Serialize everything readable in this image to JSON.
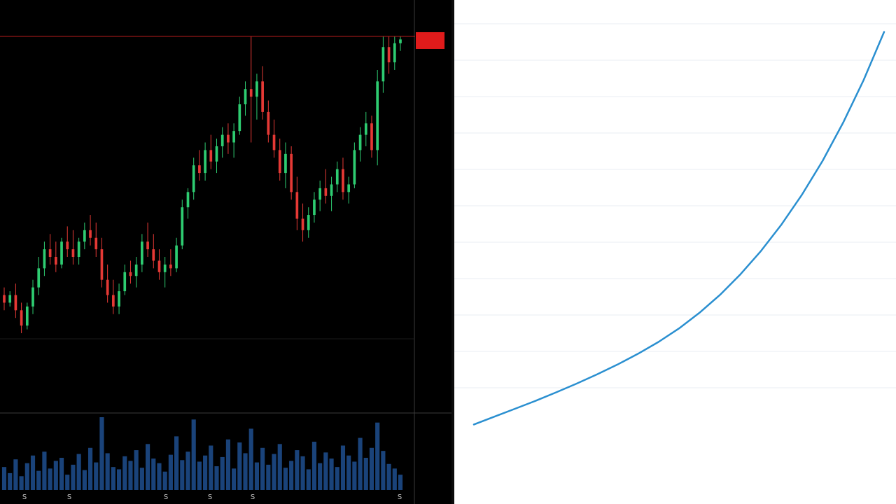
{
  "window": {
    "title": ""
  },
  "colors": {
    "candle_up": "#2ecc71",
    "candle_down": "#e53935",
    "volume": "#1e4f8f",
    "price_line": "#b71c1c",
    "price_label_bg": "#e01b1b",
    "axis_text": "#c8c8c8",
    "grid": "#1a1a1a",
    "curve": "#2a8fd0",
    "curve_grid": "#e9eef3"
  },
  "chart_data": [
    {
      "type": "candlestick",
      "title": "",
      "xlabel": "",
      "ylabel": "",
      "ylim": [
        0,
        100
      ],
      "grid": false,
      "current_price": 97.8,
      "current_price_label": [
        "",
        ""
      ],
      "y_ticks": [
        "",
        "",
        "",
        "",
        "",
        "",
        "",
        "",
        "",
        "",
        "",
        "",
        "",
        "",
        ""
      ],
      "x_ticks": [
        "S",
        "S",
        "S",
        "S",
        "S",
        "S"
      ],
      "volume_ticks": [
        "",
        "",
        ""
      ],
      "ohlc": [
        [
          30,
          32,
          26,
          28
        ],
        [
          28,
          31,
          27,
          30
        ],
        [
          30,
          33,
          24,
          26
        ],
        [
          26,
          28,
          20,
          22
        ],
        [
          22,
          28,
          21,
          27
        ],
        [
          27,
          34,
          25,
          32
        ],
        [
          32,
          40,
          30,
          37
        ],
        [
          37,
          44,
          35,
          42
        ],
        [
          42,
          46,
          38,
          40
        ],
        [
          40,
          44,
          36,
          38
        ],
        [
          38,
          45,
          37,
          44
        ],
        [
          44,
          48,
          40,
          42
        ],
        [
          42,
          47,
          38,
          40
        ],
        [
          40,
          45,
          38,
          44
        ],
        [
          44,
          49,
          42,
          47
        ],
        [
          47,
          51,
          43,
          45
        ],
        [
          45,
          49,
          40,
          42
        ],
        [
          42,
          45,
          32,
          34
        ],
        [
          34,
          38,
          28,
          30
        ],
        [
          30,
          34,
          25,
          27
        ],
        [
          27,
          33,
          25,
          31
        ],
        [
          31,
          38,
          30,
          36
        ],
        [
          36,
          39,
          33,
          35
        ],
        [
          35,
          40,
          32,
          38
        ],
        [
          38,
          46,
          36,
          44
        ],
        [
          44,
          49,
          40,
          42
        ],
        [
          42,
          46,
          37,
          39
        ],
        [
          39,
          42,
          34,
          36
        ],
        [
          36,
          40,
          32,
          38
        ],
        [
          38,
          42,
          35,
          37
        ],
        [
          37,
          45,
          36,
          43
        ],
        [
          43,
          55,
          42,
          53
        ],
        [
          53,
          58,
          50,
          57
        ],
        [
          57,
          66,
          55,
          64
        ],
        [
          64,
          68,
          60,
          62
        ],
        [
          62,
          70,
          60,
          68
        ],
        [
          68,
          72,
          63,
          65
        ],
        [
          65,
          71,
          62,
          69
        ],
        [
          69,
          74,
          66,
          72
        ],
        [
          72,
          75,
          67,
          70
        ],
        [
          70,
          75,
          66,
          73
        ],
        [
          73,
          82,
          72,
          80
        ],
        [
          80,
          86,
          77,
          84
        ],
        [
          84,
          97.8,
          70,
          82
        ],
        [
          82,
          88,
          76,
          86
        ],
        [
          86,
          90,
          76,
          78
        ],
        [
          78,
          81,
          70,
          72
        ],
        [
          72,
          76,
          66,
          68
        ],
        [
          68,
          71,
          60,
          62
        ],
        [
          62,
          70,
          58,
          67
        ],
        [
          67,
          69,
          55,
          57
        ],
        [
          57,
          61,
          47,
          50
        ],
        [
          50,
          54,
          44,
          47
        ],
        [
          47,
          53,
          45,
          51
        ],
        [
          51,
          57,
          49,
          55
        ],
        [
          55,
          60,
          52,
          58
        ],
        [
          58,
          63,
          54,
          56
        ],
        [
          56,
          61,
          52,
          59
        ],
        [
          59,
          65,
          57,
          63
        ],
        [
          63,
          66,
          55,
          57
        ],
        [
          57,
          61,
          54,
          59
        ],
        [
          59,
          70,
          58,
          68
        ],
        [
          68,
          74,
          65,
          72
        ],
        [
          72,
          78,
          69,
          75
        ],
        [
          75,
          77,
          66,
          68
        ],
        [
          68,
          89,
          64,
          86
        ],
        [
          86,
          97.8,
          83,
          95
        ],
        [
          95,
          97.8,
          88,
          91
        ],
        [
          91,
          97.8,
          89,
          96
        ],
        [
          96,
          97.8,
          94,
          97
        ]
      ],
      "volume": [
        30,
        22,
        40,
        18,
        35,
        45,
        25,
        50,
        28,
        38,
        42,
        20,
        33,
        47,
        26,
        55,
        36,
        95,
        48,
        30,
        27,
        44,
        38,
        52,
        29,
        60,
        41,
        35,
        24,
        46,
        70,
        39,
        50,
        92,
        37,
        45,
        58,
        31,
        43,
        66,
        28,
        62,
        48,
        80,
        36,
        55,
        33,
        47,
        60,
        29,
        38,
        52,
        44,
        27,
        63,
        35,
        49,
        41,
        30,
        58,
        45,
        37,
        68,
        42,
        55,
        88,
        51,
        34,
        28,
        20
      ]
    },
    {
      "type": "line",
      "title": "",
      "xlabel": "",
      "ylabel": "",
      "grid": true,
      "x_ticks": [],
      "y_ticks": [],
      "series": [
        {
          "name": "",
          "x": [
            0,
            5,
            10,
            15,
            20,
            25,
            30,
            35,
            40,
            45,
            50,
            55,
            60,
            65,
            70,
            75,
            80,
            85,
            90,
            95,
            100
          ],
          "y": [
            0,
            3.5,
            7.0,
            10.5,
            14.3,
            18.2,
            22.3,
            26.7,
            31.5,
            36.8,
            42.8,
            49.8,
            57.8,
            67.0,
            77.4,
            89.2,
            102.5,
            117.5,
            134.5,
            153.5,
            175.0
          ]
        }
      ],
      "xlim": [
        0,
        100
      ],
      "ylim": [
        -3,
        178
      ]
    }
  ]
}
